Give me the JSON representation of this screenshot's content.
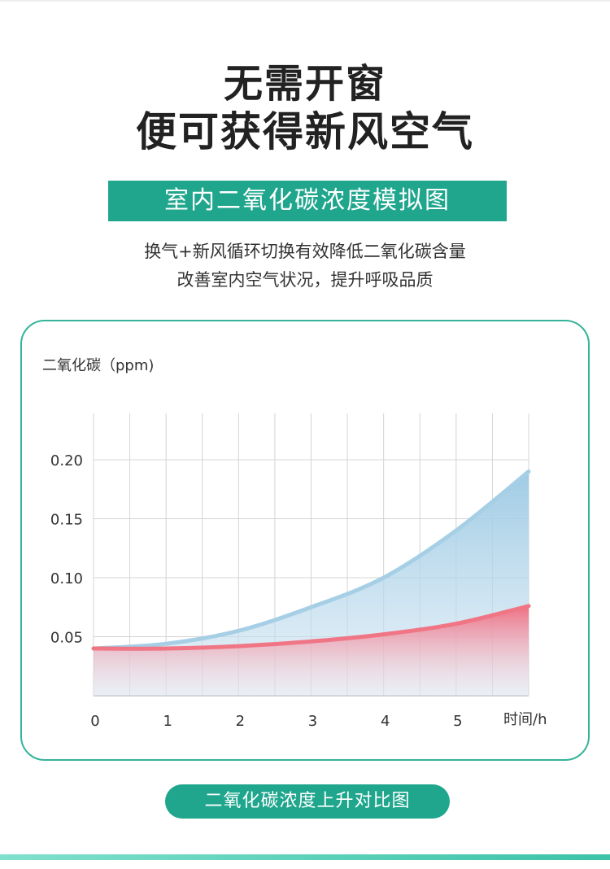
{
  "header": {
    "line1": "无需开窗",
    "line2": "便可获得新风空气"
  },
  "banner": {
    "title": "室内二氧化碳浓度模拟图"
  },
  "description": {
    "line1": "换气+新风循环切换有效降低二氧化碳含量",
    "line2": "改善室内空气状况，提升呼吸品质"
  },
  "footer": {
    "caption": "二氧化碳浓度上升对比图"
  },
  "colors": {
    "accent": "#1fa68d",
    "card_border": "#34b39a",
    "blue_series": "#a6cfe6",
    "red_series": "#f07585",
    "grid": "#d4d4d4"
  },
  "chart_data": {
    "type": "area",
    "ylabel": "二氧化碳（ppm)",
    "xlabel": "时间/h",
    "x_ticks": [
      "0",
      "1",
      "2",
      "3",
      "4",
      "5"
    ],
    "y_ticks": [
      "0.05",
      "0.10",
      "0.15",
      "0.20"
    ],
    "xlim": [
      0,
      6
    ],
    "ylim": [
      0,
      0.2
    ],
    "grid": true,
    "series": [
      {
        "x": [
          0,
          1,
          2,
          3,
          4,
          5,
          6
        ],
        "y": [
          0.04,
          0.044,
          0.055,
          0.075,
          0.1,
          0.14,
          0.19
        ]
      },
      {
        "x": [
          0,
          1,
          2,
          3,
          4,
          5,
          6
        ],
        "y": [
          0.04,
          0.04,
          0.042,
          0.046,
          0.052,
          0.061,
          0.076
        ]
      }
    ]
  }
}
